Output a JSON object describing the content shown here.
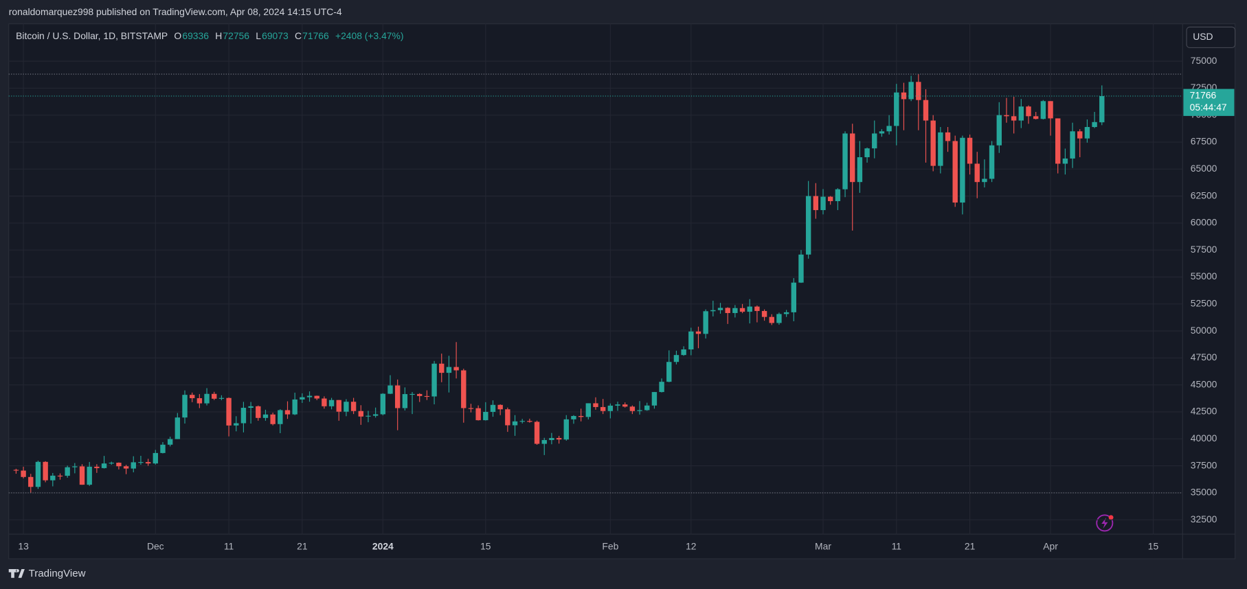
{
  "header": "ronaldomarquez998 published on TradingView.com, Apr 08, 2024 14:15 UTC-4",
  "footer": "TradingView",
  "chart_data": {
    "type": "candlestick",
    "title": "Bitcoin / U.S. Dollar, 1D, BITSTAMP",
    "legend_keys": [
      "O",
      "H",
      "L",
      "C"
    ],
    "change_label": "+2408 (+3.47%)",
    "currency": "USD",
    "countdown": "05:44:47",
    "up_color": "#26a69a",
    "down_color": "#ef5350",
    "grid": true,
    "x": [
      "2023-11-12",
      "2023-11-13",
      "2023-11-14",
      "2023-11-15",
      "2023-11-16",
      "2023-11-17",
      "2023-11-18",
      "2023-11-19",
      "2023-11-20",
      "2023-11-21",
      "2023-11-22",
      "2023-11-23",
      "2023-11-24",
      "2023-11-25",
      "2023-11-26",
      "2023-11-27",
      "2023-11-28",
      "2023-11-29",
      "2023-11-30",
      "2023-12-01",
      "2023-12-02",
      "2023-12-03",
      "2023-12-04",
      "2023-12-05",
      "2023-12-06",
      "2023-12-07",
      "2023-12-08",
      "2023-12-09",
      "2023-12-10",
      "2023-12-11",
      "2023-12-12",
      "2023-12-13",
      "2023-12-14",
      "2023-12-15",
      "2023-12-16",
      "2023-12-17",
      "2023-12-18",
      "2023-12-19",
      "2023-12-20",
      "2023-12-21",
      "2023-12-22",
      "2023-12-23",
      "2023-12-24",
      "2023-12-25",
      "2023-12-26",
      "2023-12-27",
      "2023-12-28",
      "2023-12-29",
      "2023-12-30",
      "2023-12-31",
      "2024-01-01",
      "2024-01-02",
      "2024-01-03",
      "2024-01-04",
      "2024-01-05",
      "2024-01-06",
      "2024-01-07",
      "2024-01-08",
      "2024-01-09",
      "2024-01-10",
      "2024-01-11",
      "2024-01-12",
      "2024-01-13",
      "2024-01-14",
      "2024-01-15",
      "2024-01-16",
      "2024-01-17",
      "2024-01-18",
      "2024-01-19",
      "2024-01-20",
      "2024-01-21",
      "2024-01-22",
      "2024-01-23",
      "2024-01-24",
      "2024-01-25",
      "2024-01-26",
      "2024-01-27",
      "2024-01-28",
      "2024-01-29",
      "2024-01-30",
      "2024-01-31",
      "2024-02-01",
      "2024-02-02",
      "2024-02-03",
      "2024-02-04",
      "2024-02-05",
      "2024-02-06",
      "2024-02-07",
      "2024-02-08",
      "2024-02-09",
      "2024-02-10",
      "2024-02-11",
      "2024-02-12",
      "2024-02-13",
      "2024-02-14",
      "2024-02-15",
      "2024-02-16",
      "2024-02-17",
      "2024-02-18",
      "2024-02-19",
      "2024-02-20",
      "2024-02-21",
      "2024-02-22",
      "2024-02-23",
      "2024-02-24",
      "2024-02-25",
      "2024-02-26",
      "2024-02-27",
      "2024-02-28",
      "2024-02-29",
      "2024-03-01",
      "2024-03-02",
      "2024-03-03",
      "2024-03-04",
      "2024-03-05",
      "2024-03-06",
      "2024-03-07",
      "2024-03-08",
      "2024-03-09",
      "2024-03-10",
      "2024-03-11",
      "2024-03-12",
      "2024-03-13",
      "2024-03-14",
      "2024-03-15",
      "2024-03-16",
      "2024-03-17",
      "2024-03-18",
      "2024-03-19",
      "2024-03-20",
      "2024-03-21",
      "2024-03-22",
      "2024-03-23",
      "2024-03-24",
      "2024-03-25",
      "2024-03-26",
      "2024-03-27",
      "2024-03-28",
      "2024-03-29",
      "2024-03-30",
      "2024-03-31",
      "2024-04-01",
      "2024-04-02",
      "2024-04-03",
      "2024-04-04",
      "2024-04-05",
      "2024-04-06",
      "2024-04-07",
      "2024-04-08"
    ],
    "open": [
      37130,
      37060,
      36470,
      35550,
      37870,
      36160,
      36590,
      36580,
      37370,
      37450,
      35750,
      37420,
      37290,
      37720,
      37790,
      37460,
      37250,
      37830,
      37850,
      37720,
      38690,
      39460,
      39980,
      41980,
      44080,
      43770,
      43290,
      44170,
      43720,
      43790,
      41240,
      41450,
      42880,
      43020,
      41940,
      42260,
      41370,
      42660,
      42270,
      43650,
      43860,
      43990,
      43740,
      43020,
      43600,
      42520,
      43440,
      42580,
      42070,
      42140,
      42280,
      44180,
      44950,
      42850,
      44150,
      44160,
      43970,
      43930,
      46970,
      46120,
      46660,
      46350,
      42850,
      42840,
      41730,
      42500,
      43150,
      42740,
      41260,
      41620,
      41660,
      41580,
      39540,
      39890,
      40080,
      39940,
      41810,
      42120,
      42030,
      43300,
      42950,
      42580,
      43080,
      43190,
      42990,
      42580,
      42660,
      43090,
      44340,
      45290,
      47130,
      47770,
      48290,
      49950,
      49730,
      51830,
      51930,
      52140,
      51660,
      52120,
      51780,
      52260,
      51850,
      51300,
      50740,
      51570,
      51730,
      54480,
      57080,
      62500,
      61200,
      62440,
      62030,
      63130,
      68300,
      63800,
      66100,
      66920,
      68300,
      68500,
      69000,
      72100,
      71480,
      73080,
      71400,
      69500,
      65300,
      68400,
      67600,
      61900,
      67900,
      65500,
      63800,
      64100,
      67200,
      70000,
      69900,
      69500,
      70800,
      69900,
      69650,
      71300,
      69700,
      65500,
      65980,
      68500,
      67840,
      68900,
      69336
    ],
    "high": [
      37230,
      37420,
      36760,
      37980,
      37930,
      36840,
      36800,
      37520,
      37760,
      37650,
      37860,
      37650,
      38420,
      37890,
      37820,
      37590,
      38390,
      38430,
      38150,
      38980,
      39700,
      40200,
      42400,
      44490,
      44290,
      44150,
      44700,
      44360,
      44040,
      43840,
      42100,
      43430,
      43420,
      43090,
      42700,
      42430,
      42750,
      43480,
      44280,
      44220,
      44400,
      44010,
      43940,
      43800,
      43600,
      43680,
      43800,
      43120,
      42600,
      42900,
      44230,
      45900,
      45500,
      44770,
      44340,
      44230,
      44500,
      47220,
      47900,
      47700,
      48970,
      46500,
      43250,
      43100,
      43400,
      43570,
      43200,
      42900,
      42200,
      41850,
      41870,
      41690,
      40100,
      40550,
      40280,
      42200,
      42200,
      42800,
      43300,
      43850,
      43700,
      43280,
      43450,
      43380,
      43100,
      43500,
      43350,
      44350,
      45600,
      48200,
      48170,
      48580,
      50300,
      50400,
      52000,
      52800,
      52600,
      52200,
      52400,
      52500,
      52950,
      52360,
      52000,
      51550,
      51700,
      51950,
      54900,
      57500,
      63900,
      63700,
      63150,
      62500,
      63230,
      68500,
      69200,
      67600,
      67000,
      69500,
      68700,
      70000,
      72900,
      73000,
      73650,
      73800,
      72400,
      70000,
      68900,
      68900,
      68100,
      68100,
      68200,
      66600,
      65900,
      67600,
      71200,
      71600,
      71700,
      71500,
      70900,
      70300,
      71400,
      71300,
      69700,
      66900,
      69300,
      68700,
      69600,
      70300,
      72756
    ],
    "low": [
      36770,
      36340,
      35000,
      35360,
      35980,
      35600,
      36220,
      36400,
      36810,
      35740,
      35640,
      36850,
      37250,
      37600,
      37170,
      36730,
      36900,
      37600,
      37500,
      37620,
      38650,
      39300,
      39980,
      41420,
      43400,
      42850,
      43100,
      43600,
      43580,
      40230,
      40700,
      40600,
      41420,
      41680,
      41680,
      41250,
      40530,
      41850,
      42200,
      43330,
      43440,
      43590,
      42800,
      42740,
      41680,
      42100,
      42300,
      41300,
      41540,
      41970,
      42180,
      44150,
      40800,
      42630,
      42300,
      43420,
      43600,
      43200,
      45250,
      44300,
      45600,
      41500,
      42450,
      41700,
      41700,
      42050,
      42200,
      40650,
      40280,
      41430,
      41500,
      39450,
      38500,
      39500,
      39560,
      39830,
      41400,
      41620,
      41800,
      42700,
      42300,
      41900,
      42600,
      42900,
      42300,
      42250,
      42600,
      42800,
      44300,
      45250,
      46900,
      47700,
      47750,
      48400,
      49300,
      51350,
      51600,
      50650,
      51250,
      51650,
      50700,
      50800,
      50950,
      50550,
      50580,
      51300,
      50900,
      54450,
      56700,
      60400,
      60800,
      61700,
      61200,
      62400,
      59300,
      62800,
      65600,
      66000,
      68000,
      68200,
      67200,
      68600,
      71300,
      68600,
      65600,
      64800,
      64600,
      66600,
      61500,
      60800,
      64500,
      62300,
      63300,
      63800,
      66500,
      69300,
      68300,
      68800,
      69200,
      69600,
      69600,
      68100,
      64600,
      64500,
      65100,
      66100,
      67450,
      68800,
      69073
    ],
    "close": [
      37060,
      36470,
      35550,
      37870,
      36160,
      36590,
      36580,
      37370,
      37450,
      35750,
      37420,
      37290,
      37720,
      37790,
      37460,
      37250,
      37830,
      37850,
      37720,
      38690,
      39460,
      39980,
      41980,
      44080,
      43770,
      43290,
      44170,
      43720,
      43790,
      41240,
      41450,
      42880,
      43020,
      41940,
      42260,
      41370,
      42660,
      42270,
      43650,
      43860,
      43990,
      43740,
      43020,
      43600,
      42520,
      43440,
      42580,
      42070,
      42140,
      42280,
      44180,
      44950,
      42850,
      44150,
      44160,
      43970,
      43930,
      46970,
      46120,
      46660,
      46350,
      42850,
      42840,
      41730,
      42500,
      43150,
      42740,
      41260,
      41620,
      41660,
      41580,
      39540,
      39890,
      40080,
      39940,
      41810,
      42120,
      42030,
      43300,
      42950,
      42580,
      43080,
      43190,
      42990,
      42580,
      42660,
      43090,
      44340,
      45290,
      47130,
      47770,
      48290,
      49950,
      49730,
      51830,
      51930,
      52140,
      51660,
      52120,
      51780,
      52260,
      51850,
      51300,
      50740,
      51570,
      51730,
      54480,
      57080,
      62500,
      61200,
      62440,
      62030,
      63130,
      68300,
      63800,
      66100,
      66920,
      68300,
      68500,
      69000,
      72100,
      71480,
      73080,
      71400,
      69500,
      65300,
      68400,
      67600,
      61900,
      67900,
      65500,
      63800,
      64100,
      67200,
      70000,
      69900,
      69500,
      70800,
      69900,
      69650,
      71300,
      69700,
      65500,
      65980,
      68500,
      67840,
      68900,
      69358,
      71766
    ],
    "ylim": [
      31170,
      78460
    ],
    "yticks": [
      32500,
      35000,
      37500,
      40000,
      42500,
      45000,
      47500,
      50000,
      52500,
      55000,
      57500,
      60000,
      62500,
      65000,
      67500,
      70000,
      72500,
      75000
    ],
    "xlim": [
      "2023-11-11",
      "2024-04-19"
    ],
    "xticks": [
      {
        "value": "2023-11-13",
        "label": "13"
      },
      {
        "value": "2023-12-01",
        "label": "Dec"
      },
      {
        "value": "2023-12-11",
        "label": "11"
      },
      {
        "value": "2023-12-21",
        "label": "21"
      },
      {
        "value": "2024-01-01",
        "label": "2024"
      },
      {
        "value": "2024-01-15",
        "label": "15"
      },
      {
        "value": "2024-02-01",
        "label": "Feb"
      },
      {
        "value": "2024-02-12",
        "label": "12"
      },
      {
        "value": "2024-03-01",
        "label": "Mar"
      },
      {
        "value": "2024-03-11",
        "label": "11"
      },
      {
        "value": "2024-03-21",
        "label": "21"
      },
      {
        "value": "2024-04-01",
        "label": "Apr"
      },
      {
        "value": "2024-04-15",
        "label": "15"
      }
    ]
  }
}
